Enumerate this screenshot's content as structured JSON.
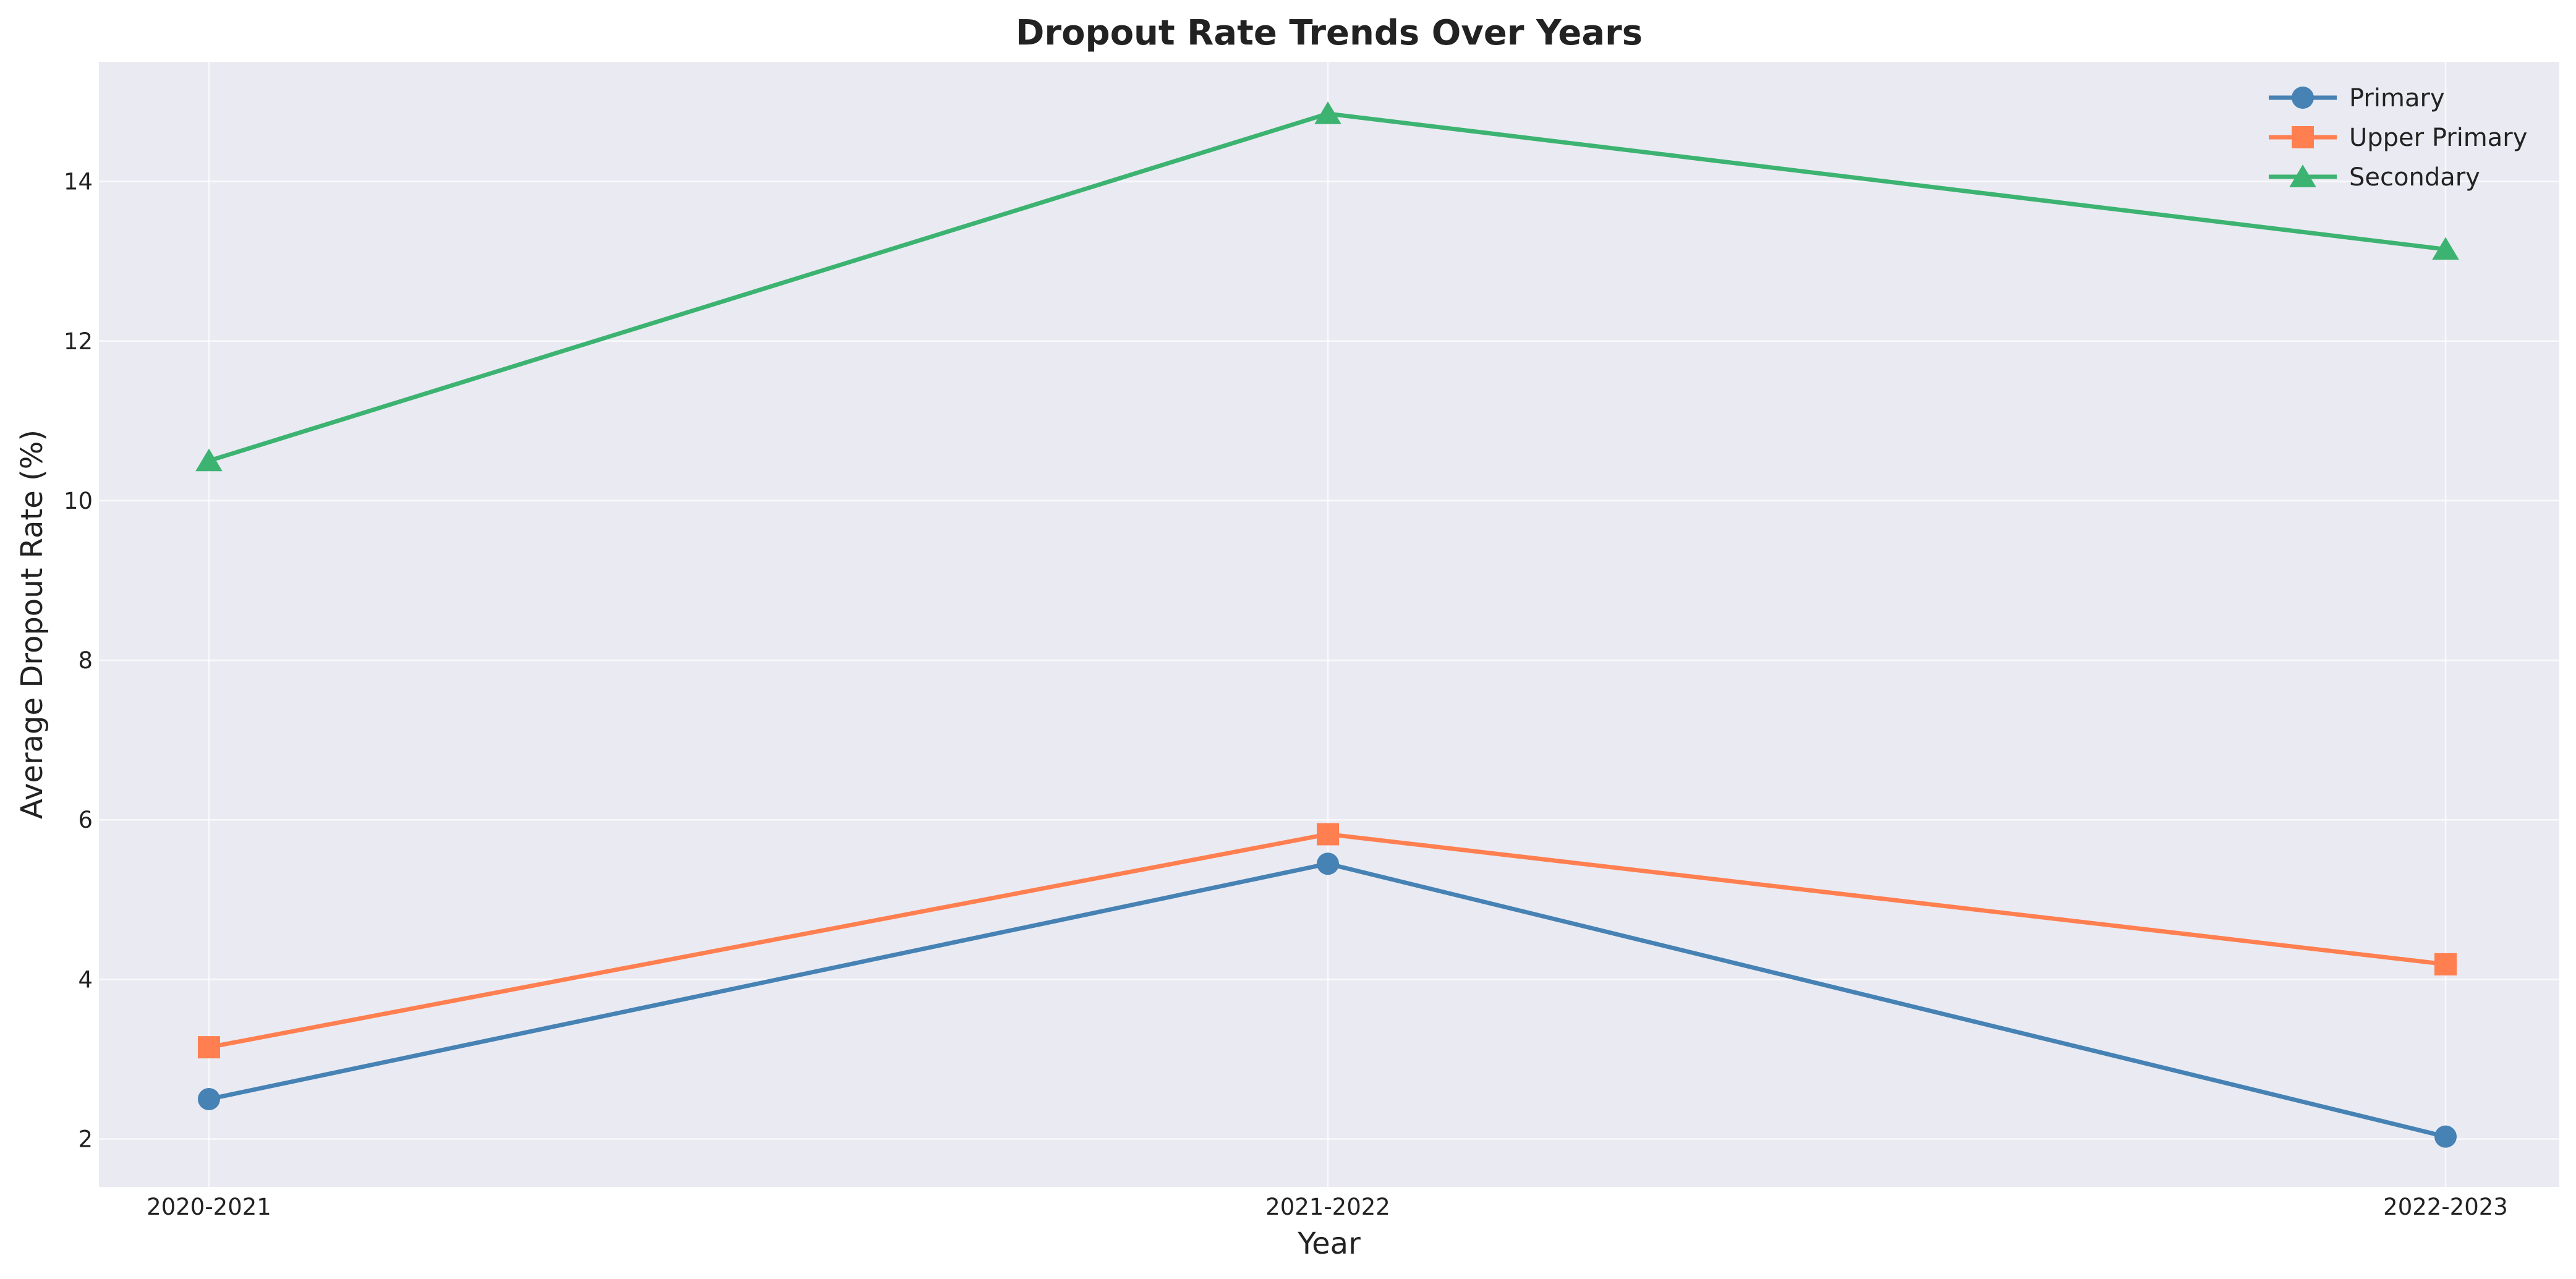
{
  "chart_data": {
    "type": "line",
    "title": "Dropout Rate Trends Over Years",
    "xlabel": "Year",
    "ylabel": "Average Dropout Rate (%)",
    "categories": [
      "2020-2021",
      "2021-2022",
      "2022-2023"
    ],
    "ylim": [
      1.4,
      15.5
    ],
    "yticks": [
      2,
      4,
      6,
      8,
      10,
      12,
      14
    ],
    "grid": true,
    "legend_position": "top-right",
    "background": "#eaeaf2",
    "series": [
      {
        "name": "Primary",
        "marker": "circle",
        "color": "#4682b4",
        "values": [
          2.5,
          5.45,
          2.03
        ]
      },
      {
        "name": "Upper Primary",
        "marker": "square",
        "color": "#ff7f50",
        "values": [
          3.15,
          5.82,
          4.19
        ]
      },
      {
        "name": "Secondary",
        "marker": "triangle",
        "color": "#3cb371",
        "values": [
          10.5,
          14.85,
          13.15
        ]
      }
    ]
  }
}
